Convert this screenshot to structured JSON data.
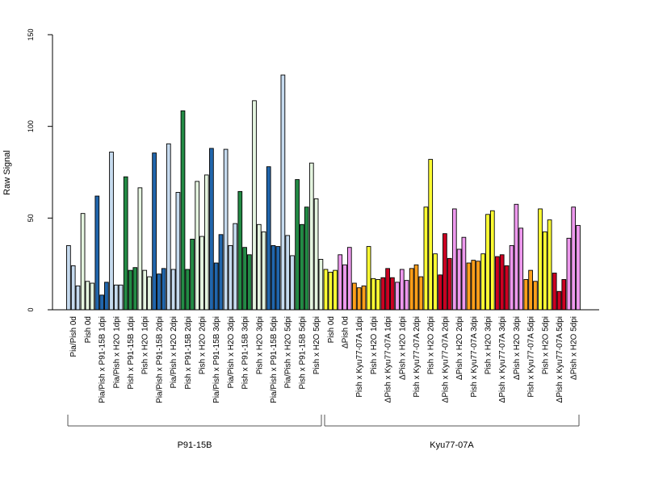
{
  "chart_data": {
    "type": "bar",
    "ylabel": "Raw Signal",
    "ylim": [
      0,
      150
    ],
    "yticks": [
      0,
      50,
      100,
      150
    ],
    "grid": false,
    "categories": [
      "Pia/Pish 0d",
      "Pish 0d",
      "Pia/Pish x P91-15B 1dpi",
      "Pia/Pish x H2O 1dpi",
      "Pish x P91-15B 1dpi",
      "Pish x H2O 1dpi",
      "Pia/Pish x P91-15B 2dpi",
      "Pia/Pish x H2O 2dpi",
      "Pish x P91-15B 2dpi",
      "Pish x H2O 2dpi",
      "Pia/Pish x P91-15B 3dpi",
      "Pia/Pish x H2O 3dpi",
      "Pish x P91-15B 3dpi",
      "Pish x H2O 3dpi",
      "Pia/Pish x P91-15B 5dpi",
      "Pia/Pish x H2O 5dpi",
      "Pish x P91-15B 5dpi",
      "Pish x H2O 5dpi",
      "Pish 0d",
      "ΔPish 0d",
      "Pish x Kyu77-07A 1dpi",
      "Pish x H2O 1dpi",
      "ΔPish x Kyu77-07A 1dpi",
      "ΔPish x H2O 1dpi",
      "Pish x Kyu77-07A 2dpi",
      "Pish x H2O 2dpi",
      "ΔPish x Kyu77-07A 2dpi",
      "ΔPish x H2O 2dpi",
      "Pish x Kyu77-07A 3dpi",
      "Pish x H2O 3dpi",
      "ΔPish x Kyu77-07A 3dpi",
      "ΔPish x H2O 3dpi",
      "Pish x Kyu77-07A 5dpi",
      "Pish x H2O 5dpi",
      "ΔPish x Kyu77-07A 5dpi",
      "ΔPish x H2O 5dpi"
    ],
    "colors": [
      "#c6dbef",
      "#e5f5e0",
      "#2166ac",
      "#c6dbef",
      "#238b45",
      "#e5f5e0",
      "#2166ac",
      "#c6dbef",
      "#238b45",
      "#e5f5e0",
      "#2166ac",
      "#c6dbef",
      "#238b45",
      "#e5f5e0",
      "#2166ac",
      "#c6dbef",
      "#238b45",
      "#e5f5e0",
      "#ffff33",
      "#ee99ee",
      "#ff9f1a",
      "#ffff33",
      "#cc0022",
      "#ee99ee",
      "#ff9f1a",
      "#ffff33",
      "#cc0022",
      "#ee99ee",
      "#ff9f1a",
      "#ffff33",
      "#cc0022",
      "#ee99ee",
      "#ff9f1a",
      "#ffff33",
      "#cc0022",
      "#ee99ee"
    ],
    "values": [
      [
        35,
        24,
        13
      ],
      [
        52.5,
        15.5,
        14.5
      ],
      [
        62,
        8,
        15
      ],
      [
        86,
        13.5,
        13.5
      ],
      [
        72.5,
        21.5,
        23
      ],
      [
        66.5,
        21.5,
        18
      ],
      [
        85.5,
        19.5,
        22.5
      ],
      [
        90.5,
        22,
        64
      ],
      [
        108.5,
        22,
        38.5
      ],
      [
        70,
        40,
        73.5
      ],
      [
        88,
        25.5,
        41
      ],
      [
        87.5,
        35,
        47
      ],
      [
        64.5,
        34,
        30
      ],
      [
        114,
        46.5,
        42.5
      ],
      [
        78,
        35,
        34.5
      ],
      [
        128,
        40.5,
        29.5
      ],
      [
        71,
        46.5,
        56
      ],
      [
        80,
        60.5,
        27.5
      ],
      [
        22,
        20.5,
        21.5
      ],
      [
        30,
        24.5,
        34
      ],
      [
        14.5,
        12,
        13
      ],
      [
        34.5,
        17,
        16.5
      ],
      [
        17.5,
        22.5,
        17.5
      ],
      [
        15,
        22,
        16
      ],
      [
        22.5,
        24.5,
        18
      ],
      [
        56,
        82,
        30.5
      ],
      [
        19,
        41.5,
        28
      ],
      [
        55,
        33,
        39.5
      ],
      [
        25.5,
        27,
        26.5
      ],
      [
        30.5,
        52,
        54
      ],
      [
        29,
        30,
        24
      ],
      [
        35,
        57.5,
        44.5
      ],
      [
        16.5,
        21.5,
        15.5
      ],
      [
        55,
        42.5,
        49
      ],
      [
        20,
        10,
        16.5
      ],
      [
        39,
        56,
        46
      ]
    ],
    "groups": [
      {
        "label": "P91-15B",
        "from": 0,
        "to": 17
      },
      {
        "label": "Kyu77-07A",
        "from": 18,
        "to": 35
      }
    ]
  }
}
